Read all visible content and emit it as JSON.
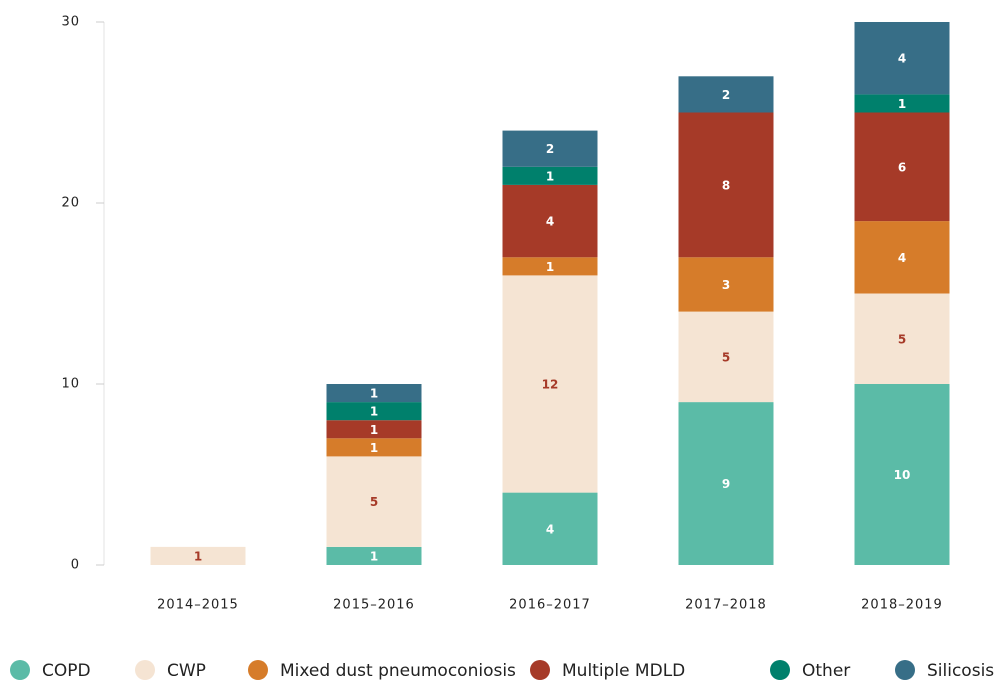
{
  "chart_data": {
    "type": "stacked_bar",
    "categories": [
      "2014–2015",
      "2015–2016",
      "2016–2017",
      "2017–2018",
      "2018–2019"
    ],
    "series": [
      {
        "name": "COPD",
        "color": "#5bbba7",
        "label_color": "#ffffff",
        "values": [
          0,
          1,
          4,
          9,
          10
        ]
      },
      {
        "name": "CWP",
        "color": "#f5e4d3",
        "label_color": "#a63a28",
        "values": [
          1,
          5,
          12,
          5,
          5
        ]
      },
      {
        "name": "Mixed dust pneumoconiosis",
        "color": "#d67c2a",
        "label_color": "#ffffff",
        "values": [
          0,
          1,
          1,
          3,
          4
        ]
      },
      {
        "name": "Multiple MDLD",
        "color": "#a63a28",
        "label_color": "#ffffff",
        "values": [
          0,
          1,
          4,
          8,
          6
        ]
      },
      {
        "name": "Other",
        "color": "#00806c",
        "label_color": "#ffffff",
        "values": [
          0,
          1,
          1,
          0,
          1
        ]
      },
      {
        "name": "Silicosis",
        "color": "#376e87",
        "label_color": "#ffffff",
        "values": [
          0,
          1,
          2,
          2,
          4
        ]
      }
    ],
    "ylim": [
      0,
      30
    ],
    "yticks": [
      0,
      10,
      20,
      30
    ],
    "legend": "bottom"
  }
}
